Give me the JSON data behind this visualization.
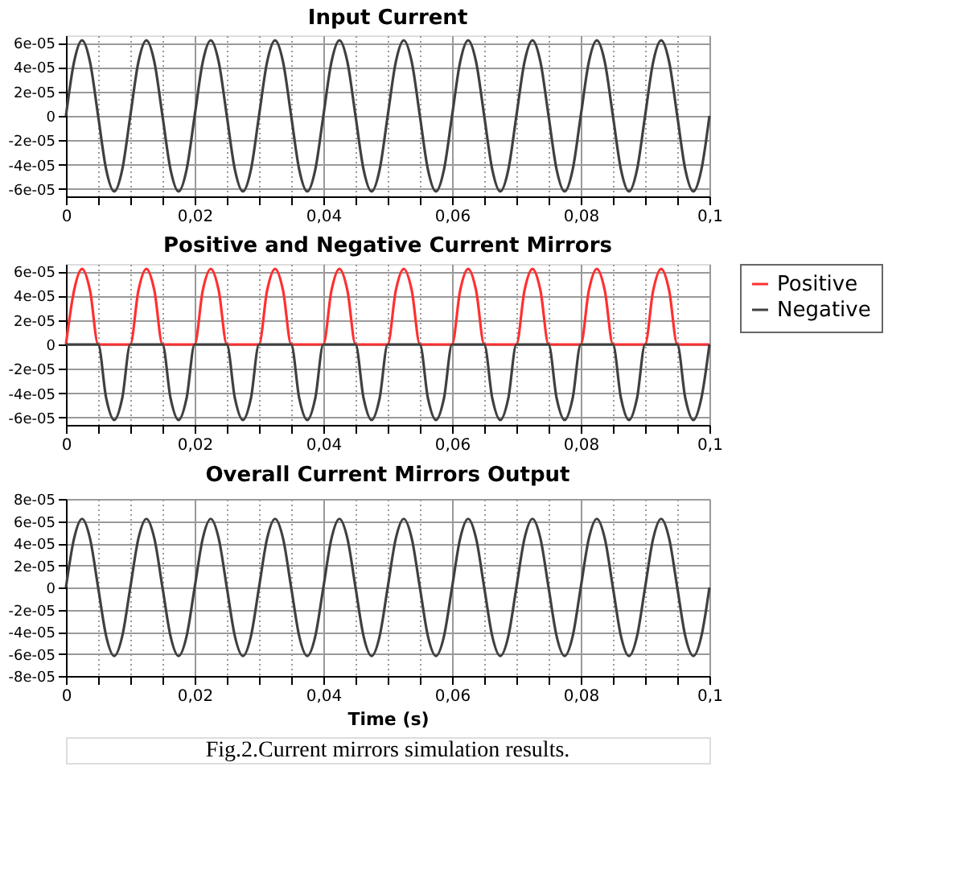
{
  "chart_data": [
    {
      "type": "line",
      "title": "Input Current",
      "x": [
        0,
        0.00125,
        0.0025,
        0.00375,
        0.005,
        0.00625,
        0.0075,
        0.00875,
        0.01,
        0.01125,
        0.0125,
        0.01375,
        0.015,
        0.01625,
        0.0175,
        0.01875,
        0.02,
        0.02125,
        0.0225,
        0.02375,
        0.025,
        0.02625,
        0.0275,
        0.02875,
        0.03,
        0.03125,
        0.0325,
        0.03375,
        0.035,
        0.03625,
        0.0375,
        0.03875,
        0.04,
        0.04125,
        0.0425,
        0.04375,
        0.045,
        0.04625,
        0.0475,
        0.04875,
        0.05,
        0.05125,
        0.0525,
        0.05375,
        0.055,
        0.05625,
        0.0575,
        0.05875,
        0.06,
        0.06125,
        0.0625,
        0.06375,
        0.065,
        0.06625,
        0.0675,
        0.06875,
        0.07,
        0.07125,
        0.0725,
        0.07375,
        0.075,
        0.07625,
        0.0775,
        0.07875,
        0.08,
        0.08125,
        0.0825,
        0.08375,
        0.085,
        0.08625,
        0.0875,
        0.08875,
        0.09,
        0.09125,
        0.0925,
        0.09375,
        0.095,
        0.09625,
        0.0975,
        0.09875,
        0.1
      ],
      "series": [
        {
          "color": "#404040",
          "values": [
            0,
            4.4e-05,
            6.2e-05,
            4.4e-05,
            0,
            -4.4e-05,
            -6.2e-05,
            -4.4e-05,
            0,
            4.4e-05,
            6.2e-05,
            4.4e-05,
            0,
            -4.4e-05,
            -6.2e-05,
            -4.4e-05,
            0,
            4.4e-05,
            6.2e-05,
            4.4e-05,
            0,
            -4.4e-05,
            -6.2e-05,
            -4.4e-05,
            0,
            4.4e-05,
            6.2e-05,
            4.4e-05,
            0,
            -4.4e-05,
            -6.2e-05,
            -4.4e-05,
            0,
            4.4e-05,
            6.2e-05,
            4.4e-05,
            0,
            -4.4e-05,
            -6.2e-05,
            -4.4e-05,
            0,
            4.4e-05,
            6.2e-05,
            4.4e-05,
            0,
            -4.4e-05,
            -6.2e-05,
            -4.4e-05,
            0,
            4.4e-05,
            6.2e-05,
            4.4e-05,
            0,
            -4.4e-05,
            -6.2e-05,
            -4.4e-05,
            0,
            4.4e-05,
            6.2e-05,
            4.4e-05,
            0,
            -4.4e-05,
            -6.2e-05,
            -4.4e-05,
            0,
            4.4e-05,
            6.2e-05,
            4.4e-05,
            0,
            -4.4e-05,
            -6.2e-05,
            -4.4e-05,
            0,
            4.4e-05,
            6.2e-05,
            4.4e-05,
            0,
            -4.4e-05,
            -6.2e-05,
            -4.4e-05,
            0
          ]
        }
      ],
      "xlim": [
        0,
        0.1
      ],
      "xticks": [
        0,
        {
          "value": 0.005,
          "label": null
        },
        {
          "value": 0.01,
          "label": null
        },
        {
          "value": 0.015,
          "label": null
        },
        {
          "value": 0.02,
          "label": "0,02"
        },
        {
          "value": 0.025,
          "label": null
        },
        {
          "value": 0.03,
          "label": null
        },
        {
          "value": 0.035,
          "label": null
        },
        {
          "value": 0.04,
          "label": "0,04"
        },
        {
          "value": 0.045,
          "label": null
        },
        {
          "value": 0.05,
          "label": null
        },
        {
          "value": 0.055,
          "label": null
        },
        {
          "value": 0.06,
          "label": "0,06"
        },
        {
          "value": 0.065,
          "label": null
        },
        {
          "value": 0.07,
          "label": null
        },
        {
          "value": 0.075,
          "label": null
        },
        {
          "value": 0.08,
          "label": "0,08"
        },
        {
          "value": 0.085,
          "label": null
        },
        {
          "value": 0.09,
          "label": null
        },
        {
          "value": 0.095,
          "label": null
        },
        {
          "value": 0.1,
          "label": "0,1"
        }
      ],
      "ylim": [
        -6.6e-05,
        6.6e-05
      ],
      "yticks": [
        {
          "value": -6e-05,
          "label": "-6e-05"
        },
        {
          "value": -4e-05,
          "label": "-4e-05"
        },
        {
          "value": -2e-05,
          "label": "-2e-05"
        },
        0,
        {
          "value": 2e-05,
          "label": "2e-05"
        },
        {
          "value": 4e-05,
          "label": "4e-05"
        },
        {
          "value": 6e-05,
          "label": "6e-05"
        }
      ],
      "grid": true,
      "legend": false,
      "marker": "none",
      "line_style": "solid"
    },
    {
      "type": "line",
      "title": "Positive and Negative Current Mirrors",
      "x": [
        0,
        0.00125,
        0.0025,
        0.00375,
        0.005,
        0.00625,
        0.0075,
        0.00875,
        0.01,
        0.01125,
        0.0125,
        0.01375,
        0.015,
        0.01625,
        0.0175,
        0.01875,
        0.02,
        0.02125,
        0.0225,
        0.02375,
        0.025,
        0.02625,
        0.0275,
        0.02875,
        0.03,
        0.03125,
        0.0325,
        0.03375,
        0.035,
        0.03625,
        0.0375,
        0.03875,
        0.04,
        0.04125,
        0.0425,
        0.04375,
        0.045,
        0.04625,
        0.0475,
        0.04875,
        0.05,
        0.05125,
        0.0525,
        0.05375,
        0.055,
        0.05625,
        0.0575,
        0.05875,
        0.06,
        0.06125,
        0.0625,
        0.06375,
        0.065,
        0.06625,
        0.0675,
        0.06875,
        0.07,
        0.07125,
        0.0725,
        0.07375,
        0.075,
        0.07625,
        0.0775,
        0.07875,
        0.08,
        0.08125,
        0.0825,
        0.08375,
        0.085,
        0.08625,
        0.0875,
        0.08875,
        0.09,
        0.09125,
        0.0925,
        0.09375,
        0.095,
        0.09625,
        0.0975,
        0.09875,
        0.1
      ],
      "series": [
        {
          "name": "Positive",
          "color": "#ff3030",
          "values": [
            0,
            4.4e-05,
            6.2e-05,
            4.4e-05,
            0,
            0,
            0,
            0,
            0,
            4.4e-05,
            6.2e-05,
            4.4e-05,
            0,
            0,
            0,
            0,
            0,
            4.4e-05,
            6.2e-05,
            4.4e-05,
            0,
            0,
            0,
            0,
            0,
            4.4e-05,
            6.2e-05,
            4.4e-05,
            0,
            0,
            0,
            0,
            0,
            4.4e-05,
            6.2e-05,
            4.4e-05,
            0,
            0,
            0,
            0,
            0,
            4.4e-05,
            6.2e-05,
            4.4e-05,
            0,
            0,
            0,
            0,
            0,
            4.4e-05,
            6.2e-05,
            4.4e-05,
            0,
            0,
            0,
            0,
            0,
            4.4e-05,
            6.2e-05,
            4.4e-05,
            0,
            0,
            0,
            0,
            0,
            4.4e-05,
            6.2e-05,
            4.4e-05,
            0,
            0,
            0,
            0,
            0,
            4.4e-05,
            6.2e-05,
            4.4e-05,
            0,
            0,
            0,
            0,
            0
          ]
        },
        {
          "name": "Negative",
          "color": "#404040",
          "values": [
            0,
            0,
            0,
            0,
            0,
            -4.4e-05,
            -6.2e-05,
            -4.4e-05,
            0,
            0,
            0,
            0,
            0,
            -4.4e-05,
            -6.2e-05,
            -4.4e-05,
            0,
            0,
            0,
            0,
            0,
            -4.4e-05,
            -6.2e-05,
            -4.4e-05,
            0,
            0,
            0,
            0,
            0,
            -4.4e-05,
            -6.2e-05,
            -4.4e-05,
            0,
            0,
            0,
            0,
            0,
            -4.4e-05,
            -6.2e-05,
            -4.4e-05,
            0,
            0,
            0,
            0,
            0,
            -4.4e-05,
            -6.2e-05,
            -4.4e-05,
            0,
            0,
            0,
            0,
            0,
            -4.4e-05,
            -6.2e-05,
            -4.4e-05,
            0,
            0,
            0,
            0,
            0,
            -4.4e-05,
            -6.2e-05,
            -4.4e-05,
            0,
            0,
            0,
            0,
            0,
            -4.4e-05,
            -6.2e-05,
            -4.4e-05,
            0,
            0,
            0,
            0,
            0,
            -4.4e-05,
            -6.2e-05,
            -4.4e-05,
            0
          ]
        }
      ],
      "xlim": [
        0,
        0.1
      ],
      "xticks": [
        0,
        {
          "value": 0.005,
          "label": null
        },
        {
          "value": 0.01,
          "label": null
        },
        {
          "value": 0.015,
          "label": null
        },
        {
          "value": 0.02,
          "label": "0,02"
        },
        {
          "value": 0.025,
          "label": null
        },
        {
          "value": 0.03,
          "label": null
        },
        {
          "value": 0.035,
          "label": null
        },
        {
          "value": 0.04,
          "label": "0,04"
        },
        {
          "value": 0.045,
          "label": null
        },
        {
          "value": 0.05,
          "label": null
        },
        {
          "value": 0.055,
          "label": null
        },
        {
          "value": 0.06,
          "label": "0,06"
        },
        {
          "value": 0.065,
          "label": null
        },
        {
          "value": 0.07,
          "label": null
        },
        {
          "value": 0.075,
          "label": null
        },
        {
          "value": 0.08,
          "label": "0,08"
        },
        {
          "value": 0.085,
          "label": null
        },
        {
          "value": 0.09,
          "label": null
        },
        {
          "value": 0.095,
          "label": null
        },
        {
          "value": 0.1,
          "label": "0,1"
        }
      ],
      "ylim": [
        -6.6e-05,
        6.6e-05
      ],
      "yticks": [
        {
          "value": -6e-05,
          "label": "-6e-05"
        },
        {
          "value": -4e-05,
          "label": "-4e-05"
        },
        {
          "value": -2e-05,
          "label": "-2e-05"
        },
        0,
        {
          "value": 2e-05,
          "label": "2e-05"
        },
        {
          "value": 4e-05,
          "label": "4e-05"
        },
        {
          "value": 6e-05,
          "label": "6e-05"
        }
      ],
      "grid": true,
      "legend": "right",
      "marker": "none",
      "line_style": "solid"
    },
    {
      "type": "line",
      "title": "Overall Current Mirrors Output",
      "xlabel": "Time (s)",
      "annotations": [
        "Fig.2.Current mirrors simulation results."
      ],
      "x": [
        0,
        0.00125,
        0.0025,
        0.00375,
        0.005,
        0.00625,
        0.0075,
        0.00875,
        0.01,
        0.01125,
        0.0125,
        0.01375,
        0.015,
        0.01625,
        0.0175,
        0.01875,
        0.02,
        0.02125,
        0.0225,
        0.02375,
        0.025,
        0.02625,
        0.0275,
        0.02875,
        0.03,
        0.03125,
        0.0325,
        0.03375,
        0.035,
        0.03625,
        0.0375,
        0.03875,
        0.04,
        0.04125,
        0.0425,
        0.04375,
        0.045,
        0.04625,
        0.0475,
        0.04875,
        0.05,
        0.05125,
        0.0525,
        0.05375,
        0.055,
        0.05625,
        0.0575,
        0.05875,
        0.06,
        0.06125,
        0.0625,
        0.06375,
        0.065,
        0.06625,
        0.0675,
        0.06875,
        0.07,
        0.07125,
        0.0725,
        0.07375,
        0.075,
        0.07625,
        0.0775,
        0.07875,
        0.08,
        0.08125,
        0.0825,
        0.08375,
        0.085,
        0.08625,
        0.0875,
        0.08875,
        0.09,
        0.09125,
        0.0925,
        0.09375,
        0.095,
        0.09625,
        0.0975,
        0.09875,
        0.1
      ],
      "series": [
        {
          "color": "#404040",
          "values": [
            0,
            4.4e-05,
            6.2e-05,
            4.4e-05,
            0,
            -4.4e-05,
            -6.2e-05,
            -4.4e-05,
            0,
            4.4e-05,
            6.2e-05,
            4.4e-05,
            0,
            -4.4e-05,
            -6.2e-05,
            -4.4e-05,
            0,
            4.4e-05,
            6.2e-05,
            4.4e-05,
            0,
            -4.4e-05,
            -6.2e-05,
            -4.4e-05,
            0,
            4.4e-05,
            6.2e-05,
            4.4e-05,
            0,
            -4.4e-05,
            -6.2e-05,
            -4.4e-05,
            0,
            4.4e-05,
            6.2e-05,
            4.4e-05,
            0,
            -4.4e-05,
            -6.2e-05,
            -4.4e-05,
            0,
            4.4e-05,
            6.2e-05,
            4.4e-05,
            0,
            -4.4e-05,
            -6.2e-05,
            -4.4e-05,
            0,
            4.4e-05,
            6.2e-05,
            4.4e-05,
            0,
            -4.4e-05,
            -6.2e-05,
            -4.4e-05,
            0,
            4.4e-05,
            6.2e-05,
            4.4e-05,
            0,
            -4.4e-05,
            -6.2e-05,
            -4.4e-05,
            0,
            4.4e-05,
            6.2e-05,
            4.4e-05,
            0,
            -4.4e-05,
            -6.2e-05,
            -4.4e-05,
            0,
            4.4e-05,
            6.2e-05,
            4.4e-05,
            0,
            -4.4e-05,
            -6.2e-05,
            -4.4e-05,
            0
          ]
        }
      ],
      "xlim": [
        0,
        0.1
      ],
      "xticks": [
        0,
        {
          "value": 0.005,
          "label": null
        },
        {
          "value": 0.01,
          "label": null
        },
        {
          "value": 0.015,
          "label": null
        },
        {
          "value": 0.02,
          "label": "0,02"
        },
        {
          "value": 0.025,
          "label": null
        },
        {
          "value": 0.03,
          "label": null
        },
        {
          "value": 0.035,
          "label": null
        },
        {
          "value": 0.04,
          "label": "0,04"
        },
        {
          "value": 0.045,
          "label": null
        },
        {
          "value": 0.05,
          "label": null
        },
        {
          "value": 0.055,
          "label": null
        },
        {
          "value": 0.06,
          "label": "0,06"
        },
        {
          "value": 0.065,
          "label": null
        },
        {
          "value": 0.07,
          "label": null
        },
        {
          "value": 0.075,
          "label": null
        },
        {
          "value": 0.08,
          "label": "0,08"
        },
        {
          "value": 0.085,
          "label": null
        },
        {
          "value": 0.09,
          "label": null
        },
        {
          "value": 0.095,
          "label": null
        },
        {
          "value": 0.1,
          "label": "0,1"
        }
      ],
      "ylim": [
        -8e-05,
        8e-05
      ],
      "yticks": [
        {
          "value": -8e-05,
          "label": "-8e-05"
        },
        {
          "value": -6e-05,
          "label": "-6e-05"
        },
        {
          "value": -4e-05,
          "label": "-4e-05"
        },
        {
          "value": -2e-05,
          "label": "-2e-05"
        },
        0,
        {
          "value": 2e-05,
          "label": "2e-05"
        },
        {
          "value": 4e-05,
          "label": "4e-05"
        },
        {
          "value": 6e-05,
          "label": "6e-05"
        },
        {
          "value": 8e-05,
          "label": "8e-05"
        }
      ],
      "grid": true,
      "legend": false,
      "marker": "none",
      "line_style": "solid"
    }
  ]
}
